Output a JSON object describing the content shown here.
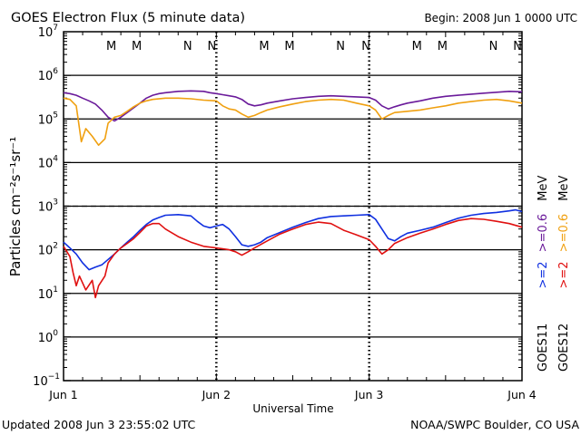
{
  "header": {
    "title": "GOES Electron Flux (5 minute data)",
    "begin": "Begin: 2008 Jun 1 0000 UTC"
  },
  "footer": {
    "updated": "Updated 2008 Jun  3 23:55:02 UTC",
    "credit": "NOAA/SWPC Boulder, CO USA"
  },
  "right_labels": {
    "goes11": "GOES11",
    "goes12": "GOES12",
    "g11_ge2": ">=2",
    "g11_ge06": ">=0.6",
    "g12_ge2": ">=2",
    "g12_ge06": ">=0.6",
    "unit": "MeV"
  },
  "colors": {
    "goes11_ge2": "#1030e0",
    "goes11_ge06": "#6a1a9a",
    "goes12_ge2": "#e01010",
    "goes12_ge06": "#f0a010",
    "marker_M": "#e01010",
    "marker_N": "#1030e0",
    "marker_M2": "#1030e0",
    "marker_N1": "#e01010"
  },
  "chart_data": {
    "type": "line",
    "title": "GOES Electron Flux (5 minute data)",
    "xlabel": "Universal Time",
    "ylabel": "Particles cm⁻²s⁻¹sr⁻¹",
    "x_unit": "hours since 2008 Jun 1 0000 UTC",
    "xlim": [
      0,
      72
    ],
    "x_ticks": [
      {
        "value": 0,
        "label": "Jun 1"
      },
      {
        "value": 24,
        "label": "Jun 2"
      },
      {
        "value": 48,
        "label": "Jun 3"
      },
      {
        "value": 72,
        "label": "Jun 4"
      }
    ],
    "y_scale": "log",
    "ylim": [
      0.1,
      10000000
    ],
    "y_ticks": [
      {
        "exp": "7"
      },
      {
        "exp": "6"
      },
      {
        "exp": "5"
      },
      {
        "exp": "4"
      },
      {
        "exp": "3"
      },
      {
        "exp": "2"
      },
      {
        "exp": "1"
      },
      {
        "exp": "0"
      },
      {
        "exp": "−1"
      }
    ],
    "threshold": 1000,
    "markers": [
      {
        "x": 7.5,
        "label": "M",
        "color": "#e01010"
      },
      {
        "x": 11.5,
        "label": "M",
        "color": "#1030e0"
      },
      {
        "x": 19.5,
        "label": "N",
        "color": "#e01010"
      },
      {
        "x": 23.3,
        "label": "N",
        "color": "#1030e0"
      },
      {
        "x": 31.5,
        "label": "M",
        "color": "#e01010"
      },
      {
        "x": 35.5,
        "label": "M",
        "color": "#1030e0"
      },
      {
        "x": 43.5,
        "label": "N",
        "color": "#e01010"
      },
      {
        "x": 47.5,
        "label": "N",
        "color": "#1030e0"
      },
      {
        "x": 55.5,
        "label": "M",
        "color": "#e01010"
      },
      {
        "x": 59.5,
        "label": "M",
        "color": "#1030e0"
      },
      {
        "x": 67.5,
        "label": "N",
        "color": "#e01010"
      },
      {
        "x": 71.3,
        "label": "N",
        "color": "#1030e0"
      }
    ],
    "series": [
      {
        "name": "GOES11 >=0.6 MeV",
        "color": "#6a1a9a",
        "points": [
          [
            0,
            400000
          ],
          [
            1,
            380000
          ],
          [
            2,
            350000
          ],
          [
            3,
            300000
          ],
          [
            4,
            260000
          ],
          [
            5,
            220000
          ],
          [
            6,
            160000
          ],
          [
            7,
            110000
          ],
          [
            8,
            90000
          ],
          [
            9,
            110000
          ],
          [
            10,
            140000
          ],
          [
            11,
            180000
          ],
          [
            12,
            230000
          ],
          [
            13,
            300000
          ],
          [
            14,
            350000
          ],
          [
            15,
            380000
          ],
          [
            16,
            400000
          ],
          [
            18,
            430000
          ],
          [
            20,
            440000
          ],
          [
            22,
            430000
          ],
          [
            23,
            400000
          ],
          [
            24,
            380000
          ],
          [
            25,
            360000
          ],
          [
            26,
            340000
          ],
          [
            27,
            320000
          ],
          [
            28,
            280000
          ],
          [
            29,
            220000
          ],
          [
            30,
            200000
          ],
          [
            31,
            210000
          ],
          [
            32,
            230000
          ],
          [
            34,
            260000
          ],
          [
            36,
            290000
          ],
          [
            38,
            310000
          ],
          [
            40,
            330000
          ],
          [
            42,
            340000
          ],
          [
            44,
            330000
          ],
          [
            46,
            320000
          ],
          [
            48,
            310000
          ],
          [
            49,
            270000
          ],
          [
            50,
            200000
          ],
          [
            51,
            170000
          ],
          [
            52,
            190000
          ],
          [
            53,
            210000
          ],
          [
            54,
            230000
          ],
          [
            56,
            260000
          ],
          [
            58,
            300000
          ],
          [
            60,
            330000
          ],
          [
            62,
            350000
          ],
          [
            64,
            370000
          ],
          [
            66,
            390000
          ],
          [
            68,
            410000
          ],
          [
            70,
            430000
          ],
          [
            72,
            420000
          ]
        ]
      },
      {
        "name": "GOES12 >=0.6 MeV",
        "color": "#f0a010",
        "points": [
          [
            0,
            300000
          ],
          [
            1,
            280000
          ],
          [
            2,
            200000
          ],
          [
            2.8,
            30000
          ],
          [
            3.5,
            60000
          ],
          [
            4.5,
            40000
          ],
          [
            5.5,
            25000
          ],
          [
            6.5,
            35000
          ],
          [
            7,
            80000
          ],
          [
            8,
            110000
          ],
          [
            9,
            120000
          ],
          [
            10,
            150000
          ],
          [
            11,
            190000
          ],
          [
            12,
            230000
          ],
          [
            13,
            260000
          ],
          [
            14,
            280000
          ],
          [
            16,
            300000
          ],
          [
            18,
            300000
          ],
          [
            20,
            290000
          ],
          [
            22,
            270000
          ],
          [
            24,
            260000
          ],
          [
            25,
            200000
          ],
          [
            26,
            170000
          ],
          [
            27,
            160000
          ],
          [
            28,
            130000
          ],
          [
            29,
            110000
          ],
          [
            30,
            120000
          ],
          [
            31,
            140000
          ],
          [
            32,
            160000
          ],
          [
            34,
            190000
          ],
          [
            36,
            220000
          ],
          [
            38,
            250000
          ],
          [
            40,
            270000
          ],
          [
            42,
            280000
          ],
          [
            44,
            270000
          ],
          [
            46,
            230000
          ],
          [
            48,
            200000
          ],
          [
            49,
            160000
          ],
          [
            50,
            100000
          ],
          [
            51,
            120000
          ],
          [
            52,
            140000
          ],
          [
            54,
            150000
          ],
          [
            56,
            160000
          ],
          [
            58,
            180000
          ],
          [
            60,
            200000
          ],
          [
            62,
            230000
          ],
          [
            64,
            250000
          ],
          [
            66,
            270000
          ],
          [
            68,
            280000
          ],
          [
            70,
            260000
          ],
          [
            72,
            230000
          ]
        ]
      },
      {
        "name": "GOES11 >=2 MeV",
        "color": "#1030e0",
        "points": [
          [
            0,
            150
          ],
          [
            1,
            110
          ],
          [
            2,
            80
          ],
          [
            3,
            50
          ],
          [
            4,
            35
          ],
          [
            5,
            40
          ],
          [
            6,
            45
          ],
          [
            7,
            60
          ],
          [
            8,
            80
          ],
          [
            9,
            110
          ],
          [
            10,
            150
          ],
          [
            11,
            200
          ],
          [
            12,
            280
          ],
          [
            13,
            380
          ],
          [
            14,
            480
          ],
          [
            15,
            550
          ],
          [
            16,
            620
          ],
          [
            18,
            640
          ],
          [
            20,
            600
          ],
          [
            21,
            450
          ],
          [
            22,
            350
          ],
          [
            23,
            320
          ],
          [
            24,
            350
          ],
          [
            25,
            380
          ],
          [
            26,
            300
          ],
          [
            27,
            200
          ],
          [
            28,
            130
          ],
          [
            29,
            120
          ],
          [
            30,
            130
          ],
          [
            31,
            150
          ],
          [
            32,
            190
          ],
          [
            34,
            250
          ],
          [
            36,
            330
          ],
          [
            38,
            420
          ],
          [
            40,
            520
          ],
          [
            42,
            580
          ],
          [
            44,
            600
          ],
          [
            46,
            620
          ],
          [
            48,
            640
          ],
          [
            49,
            500
          ],
          [
            50,
            300
          ],
          [
            51,
            180
          ],
          [
            52,
            160
          ],
          [
            53,
            200
          ],
          [
            54,
            240
          ],
          [
            56,
            280
          ],
          [
            58,
            330
          ],
          [
            60,
            420
          ],
          [
            62,
            530
          ],
          [
            64,
            620
          ],
          [
            66,
            680
          ],
          [
            68,
            720
          ],
          [
            70,
            780
          ],
          [
            71,
            820
          ],
          [
            72,
            750
          ]
        ]
      },
      {
        "name": "GOES12 >=2 MeV",
        "color": "#e01010",
        "points": [
          [
            0,
            120
          ],
          [
            1,
            70
          ],
          [
            1.5,
            30
          ],
          [
            2,
            15
          ],
          [
            2.5,
            25
          ],
          [
            3.5,
            12
          ],
          [
            4.5,
            20
          ],
          [
            5,
            8
          ],
          [
            5.5,
            15
          ],
          [
            6.5,
            25
          ],
          [
            7,
            50
          ],
          [
            8,
            80
          ],
          [
            9,
            110
          ],
          [
            10,
            140
          ],
          [
            11,
            180
          ],
          [
            12,
            250
          ],
          [
            13,
            350
          ],
          [
            14,
            400
          ],
          [
            15,
            400
          ],
          [
            16,
            300
          ],
          [
            18,
            200
          ],
          [
            20,
            150
          ],
          [
            22,
            120
          ],
          [
            24,
            110
          ],
          [
            26,
            100
          ],
          [
            27,
            90
          ],
          [
            28,
            75
          ],
          [
            29,
            90
          ],
          [
            30,
            110
          ],
          [
            32,
            160
          ],
          [
            34,
            230
          ],
          [
            36,
            300
          ],
          [
            38,
            380
          ],
          [
            40,
            430
          ],
          [
            42,
            400
          ],
          [
            44,
            280
          ],
          [
            46,
            220
          ],
          [
            48,
            170
          ],
          [
            49,
            120
          ],
          [
            50,
            80
          ],
          [
            51,
            100
          ],
          [
            52,
            140
          ],
          [
            54,
            190
          ],
          [
            56,
            240
          ],
          [
            58,
            300
          ],
          [
            60,
            380
          ],
          [
            62,
            470
          ],
          [
            64,
            520
          ],
          [
            66,
            500
          ],
          [
            68,
            450
          ],
          [
            70,
            400
          ],
          [
            72,
            330
          ]
        ]
      }
    ]
  }
}
